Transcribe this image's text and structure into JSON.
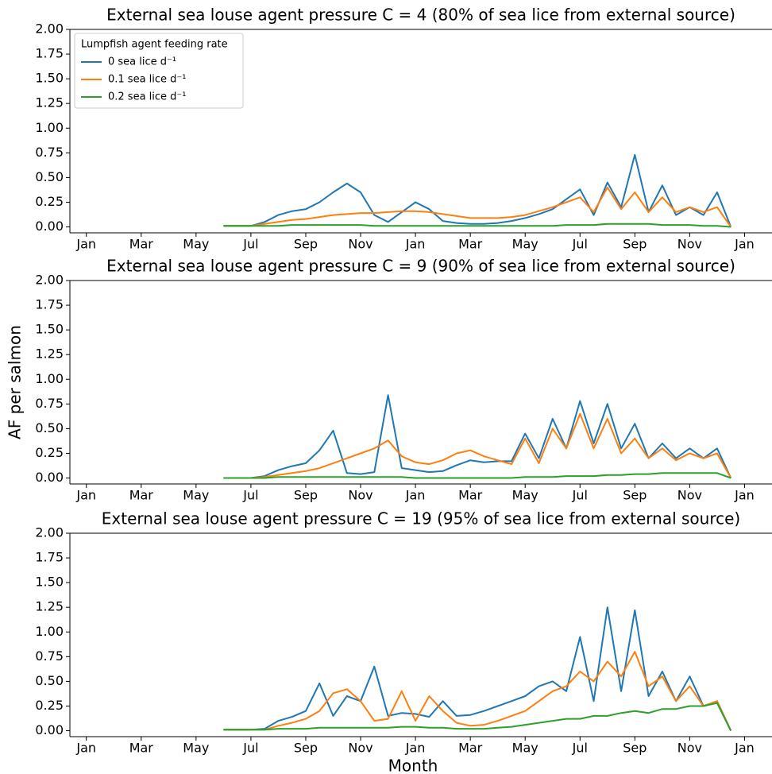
{
  "chart_data": [
    {
      "type": "line",
      "title": "External sea louse agent pressure C = 4 (80% of sea lice from external source)",
      "legend_title": "Lumpfish agent feeding rate",
      "legend": "upper left",
      "x": [
        5,
        5.5,
        6,
        6.5,
        7,
        7.5,
        8,
        8.5,
        9,
        9.5,
        10,
        10.5,
        11,
        11.5,
        12,
        12.5,
        13,
        13.5,
        14,
        14.5,
        15,
        15.5,
        16,
        16.5,
        17,
        17.5,
        18,
        18.5,
        19,
        19.5,
        20,
        20.5,
        21,
        21.5,
        22,
        22.5,
        23,
        23.5
      ],
      "xlim": [
        -0.6,
        25
      ],
      "ylim": [
        -0.06,
        2.0
      ],
      "xticks": [
        {
          "value": 0,
          "label": "Jan"
        },
        {
          "value": 2,
          "label": "Mar"
        },
        {
          "value": 4,
          "label": "May"
        },
        {
          "value": 6,
          "label": "Jul"
        },
        {
          "value": 8,
          "label": "Sep"
        },
        {
          "value": 10,
          "label": "Nov"
        },
        {
          "value": 12,
          "label": "Jan"
        },
        {
          "value": 14,
          "label": "Mar"
        },
        {
          "value": 16,
          "label": "May"
        },
        {
          "value": 18,
          "label": "Jul"
        },
        {
          "value": 20,
          "label": "Sep"
        },
        {
          "value": 22,
          "label": "Nov"
        },
        {
          "value": 24,
          "label": "Jan"
        }
      ],
      "yticks": [
        {
          "value": 0,
          "label": "0.00"
        },
        {
          "value": 0.25,
          "label": "0.25"
        },
        {
          "value": 0.5,
          "label": "0.50"
        },
        {
          "value": 0.75,
          "label": "0.75"
        },
        {
          "value": 1,
          "label": "1.00"
        },
        {
          "value": 1.25,
          "label": "1.25"
        },
        {
          "value": 1.5,
          "label": "1.50"
        },
        {
          "value": 1.75,
          "label": "1.75"
        },
        {
          "value": 2,
          "label": "2.00"
        }
      ],
      "series": [
        {
          "name": "0 sea lice d⁻¹",
          "color": "#1f77b4",
          "values": [
            0.01,
            0.01,
            0.01,
            0.05,
            0.12,
            0.16,
            0.18,
            0.25,
            0.35,
            0.44,
            0.35,
            0.12,
            0.05,
            0.15,
            0.25,
            0.18,
            0.06,
            0.04,
            0.03,
            0.03,
            0.04,
            0.06,
            0.09,
            0.13,
            0.18,
            0.28,
            0.38,
            0.12,
            0.45,
            0.2,
            0.73,
            0.15,
            0.42,
            0.12,
            0.2,
            0.12,
            0.35,
            0
          ]
        },
        {
          "name": "0.1 sea lice d⁻¹",
          "color": "#ff7f0e",
          "values": [
            0.01,
            0.01,
            0.01,
            0.03,
            0.05,
            0.07,
            0.08,
            0.1,
            0.12,
            0.13,
            0.14,
            0.14,
            0.15,
            0.16,
            0.16,
            0.15,
            0.13,
            0.11,
            0.09,
            0.09,
            0.09,
            0.1,
            0.12,
            0.16,
            0.2,
            0.25,
            0.3,
            0.15,
            0.4,
            0.18,
            0.35,
            0.15,
            0.3,
            0.15,
            0.2,
            0.15,
            0.2,
            0
          ]
        },
        {
          "name": "0.2 sea lice d⁻¹",
          "color": "#2ca02c",
          "values": [
            0.01,
            0.01,
            0.01,
            0.01,
            0.01,
            0.02,
            0.02,
            0.02,
            0.02,
            0.02,
            0.02,
            0.01,
            0.01,
            0.01,
            0.01,
            0.01,
            0.01,
            0.01,
            0.01,
            0.01,
            0.01,
            0.01,
            0.01,
            0.01,
            0.01,
            0.02,
            0.02,
            0.02,
            0.03,
            0.03,
            0.03,
            0.03,
            0.02,
            0.02,
            0.02,
            0.01,
            0.01,
            0
          ]
        }
      ]
    },
    {
      "type": "line",
      "title": "External sea louse agent pressure C = 9 (90% of sea lice from external source)",
      "ylabel": "AF per salmon",
      "x": [
        5,
        5.5,
        6,
        6.5,
        7,
        7.5,
        8,
        8.5,
        9,
        9.5,
        10,
        10.5,
        11,
        11.5,
        12,
        12.5,
        13,
        13.5,
        14,
        14.5,
        15,
        15.5,
        16,
        16.5,
        17,
        17.5,
        18,
        18.5,
        19,
        19.5,
        20,
        20.5,
        21,
        21.5,
        22,
        22.5,
        23,
        23.5
      ],
      "xlim": [
        -0.6,
        25
      ],
      "ylim": [
        -0.06,
        2.0
      ],
      "xticks": [
        {
          "value": 0,
          "label": "Jan"
        },
        {
          "value": 2,
          "label": "Mar"
        },
        {
          "value": 4,
          "label": "May"
        },
        {
          "value": 6,
          "label": "Jul"
        },
        {
          "value": 8,
          "label": "Sep"
        },
        {
          "value": 10,
          "label": "Nov"
        },
        {
          "value": 12,
          "label": "Jan"
        },
        {
          "value": 14,
          "label": "Mar"
        },
        {
          "value": 16,
          "label": "May"
        },
        {
          "value": 18,
          "label": "Jul"
        },
        {
          "value": 20,
          "label": "Sep"
        },
        {
          "value": 22,
          "label": "Nov"
        },
        {
          "value": 24,
          "label": "Jan"
        }
      ],
      "yticks": [
        {
          "value": 0,
          "label": "0.00"
        },
        {
          "value": 0.25,
          "label": "0.25"
        },
        {
          "value": 0.5,
          "label": "0.50"
        },
        {
          "value": 0.75,
          "label": "0.75"
        },
        {
          "value": 1,
          "label": "1.00"
        },
        {
          "value": 1.25,
          "label": "1.25"
        },
        {
          "value": 1.5,
          "label": "1.50"
        },
        {
          "value": 1.75,
          "label": "1.75"
        },
        {
          "value": 2,
          "label": "2.00"
        }
      ],
      "series": [
        {
          "color": "#1f77b4",
          "values": [
            0,
            0,
            0,
            0.02,
            0.08,
            0.12,
            0.15,
            0.28,
            0.48,
            0.05,
            0.04,
            0.06,
            0.84,
            0.1,
            0.08,
            0.06,
            0.07,
            0.13,
            0.18,
            0.16,
            0.17,
            0.17,
            0.45,
            0.2,
            0.6,
            0.3,
            0.78,
            0.35,
            0.75,
            0.3,
            0.55,
            0.2,
            0.35,
            0.2,
            0.3,
            0.2,
            0.3,
            0
          ]
        },
        {
          "color": "#ff7f0e",
          "values": [
            0,
            0,
            0,
            0.01,
            0.03,
            0.05,
            0.07,
            0.1,
            0.15,
            0.2,
            0.25,
            0.3,
            0.38,
            0.22,
            0.16,
            0.14,
            0.18,
            0.25,
            0.28,
            0.22,
            0.18,
            0.14,
            0.4,
            0.15,
            0.5,
            0.3,
            0.65,
            0.3,
            0.6,
            0.25,
            0.4,
            0.2,
            0.3,
            0.18,
            0.25,
            0.2,
            0.25,
            0
          ]
        },
        {
          "color": "#2ca02c",
          "values": [
            0,
            0,
            0,
            0,
            0.01,
            0.01,
            0.01,
            0.01,
            0.01,
            0.01,
            0.01,
            0.01,
            0.01,
            0.01,
            0,
            0,
            0,
            0,
            0,
            0,
            0,
            0,
            0.01,
            0.01,
            0.01,
            0.02,
            0.02,
            0.02,
            0.03,
            0.03,
            0.04,
            0.04,
            0.05,
            0.05,
            0.05,
            0.05,
            0.05,
            0
          ]
        }
      ]
    },
    {
      "type": "line",
      "title": "External sea louse agent pressure C = 19 (95% of sea lice from external source)",
      "xlabel": "Month",
      "x": [
        5,
        5.5,
        6,
        6.5,
        7,
        7.5,
        8,
        8.5,
        9,
        9.5,
        10,
        10.5,
        11,
        11.5,
        12,
        12.5,
        13,
        13.5,
        14,
        14.5,
        15,
        15.5,
        16,
        16.5,
        17,
        17.5,
        18,
        18.5,
        19,
        19.5,
        20,
        20.5,
        21,
        21.5,
        22,
        22.5,
        23,
        23.5
      ],
      "xlim": [
        -0.6,
        25
      ],
      "ylim": [
        -0.06,
        2.0
      ],
      "xticks": [
        {
          "value": 0,
          "label": "Jan"
        },
        {
          "value": 2,
          "label": "Mar"
        },
        {
          "value": 4,
          "label": "May"
        },
        {
          "value": 6,
          "label": "Jul"
        },
        {
          "value": 8,
          "label": "Sep"
        },
        {
          "value": 10,
          "label": "Nov"
        },
        {
          "value": 12,
          "label": "Jan"
        },
        {
          "value": 14,
          "label": "Mar"
        },
        {
          "value": 16,
          "label": "May"
        },
        {
          "value": 18,
          "label": "Jul"
        },
        {
          "value": 20,
          "label": "Sep"
        },
        {
          "value": 22,
          "label": "Nov"
        },
        {
          "value": 24,
          "label": "Jan"
        }
      ],
      "yticks": [
        {
          "value": 0,
          "label": "0.00"
        },
        {
          "value": 0.25,
          "label": "0.25"
        },
        {
          "value": 0.5,
          "label": "0.50"
        },
        {
          "value": 0.75,
          "label": "0.75"
        },
        {
          "value": 1,
          "label": "1.00"
        },
        {
          "value": 1.25,
          "label": "1.25"
        },
        {
          "value": 1.5,
          "label": "1.50"
        },
        {
          "value": 1.75,
          "label": "1.75"
        },
        {
          "value": 2,
          "label": "2.00"
        }
      ],
      "series": [
        {
          "color": "#1f77b4",
          "values": [
            0.01,
            0.01,
            0.01,
            0.02,
            0.1,
            0.14,
            0.2,
            0.48,
            0.15,
            0.35,
            0.3,
            0.65,
            0.15,
            0.18,
            0.17,
            0.14,
            0.3,
            0.15,
            0.16,
            0.2,
            0.25,
            0.3,
            0.35,
            0.45,
            0.5,
            0.4,
            0.95,
            0.3,
            1.25,
            0.4,
            1.22,
            0.35,
            0.6,
            0.3,
            0.55,
            0.25,
            0.3,
            0
          ]
        },
        {
          "color": "#ff7f0e",
          "values": [
            0.01,
            0.01,
            0.01,
            0.01,
            0.05,
            0.08,
            0.12,
            0.2,
            0.38,
            0.42,
            0.3,
            0.1,
            0.12,
            0.4,
            0.1,
            0.35,
            0.2,
            0.08,
            0.05,
            0.06,
            0.1,
            0.15,
            0.2,
            0.3,
            0.4,
            0.45,
            0.6,
            0.5,
            0.7,
            0.55,
            0.8,
            0.45,
            0.55,
            0.3,
            0.45,
            0.25,
            0.3,
            0
          ]
        },
        {
          "color": "#2ca02c",
          "values": [
            0.01,
            0.01,
            0.01,
            0.01,
            0.02,
            0.02,
            0.02,
            0.03,
            0.03,
            0.03,
            0.03,
            0.03,
            0.03,
            0.04,
            0.04,
            0.03,
            0.03,
            0.02,
            0.02,
            0.02,
            0.03,
            0.04,
            0.06,
            0.08,
            0.1,
            0.12,
            0.12,
            0.15,
            0.15,
            0.18,
            0.2,
            0.18,
            0.22,
            0.22,
            0.25,
            0.25,
            0.28,
            0
          ]
        }
      ]
    }
  ]
}
